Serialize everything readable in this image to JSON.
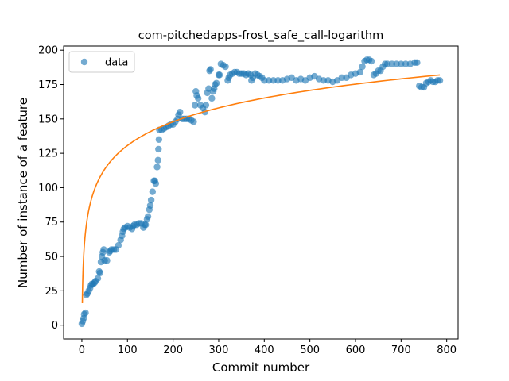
{
  "chart_data": {
    "type": "scatter",
    "title": "com-pitchedapps-frost_safe_call-logarithm",
    "xlabel": "Commit number",
    "ylabel": "Number of instance of a feature",
    "xlim": [
      -40,
      825
    ],
    "ylim": [
      -10,
      203
    ],
    "xticks": [
      0,
      100,
      200,
      300,
      400,
      500,
      600,
      700,
      800
    ],
    "yticks": [
      0,
      25,
      50,
      75,
      100,
      125,
      150,
      175,
      200
    ],
    "grid": false,
    "legend": {
      "position": "top-left",
      "entries": [
        "data"
      ]
    },
    "colors": {
      "data": "#1f77b4",
      "fit": "#ff7f0e"
    },
    "series": [
      {
        "name": "data",
        "kind": "scatter",
        "points": [
          [
            0,
            1
          ],
          [
            2,
            3
          ],
          [
            4,
            5
          ],
          [
            5,
            8
          ],
          [
            8,
            9
          ],
          [
            10,
            22
          ],
          [
            12,
            23
          ],
          [
            15,
            25
          ],
          [
            18,
            27
          ],
          [
            20,
            29
          ],
          [
            22,
            30
          ],
          [
            25,
            30
          ],
          [
            28,
            31
          ],
          [
            30,
            32
          ],
          [
            35,
            34
          ],
          [
            38,
            39
          ],
          [
            40,
            38
          ],
          [
            42,
            46
          ],
          [
            44,
            50
          ],
          [
            46,
            53
          ],
          [
            48,
            55
          ],
          [
            50,
            47
          ],
          [
            55,
            47
          ],
          [
            60,
            53
          ],
          [
            62,
            54
          ],
          [
            65,
            55
          ],
          [
            70,
            55
          ],
          [
            75,
            55
          ],
          [
            80,
            58
          ],
          [
            85,
            62
          ],
          [
            88,
            65
          ],
          [
            90,
            68
          ],
          [
            92,
            70
          ],
          [
            95,
            71
          ],
          [
            100,
            72
          ],
          [
            105,
            71
          ],
          [
            110,
            70
          ],
          [
            112,
            72
          ],
          [
            115,
            73
          ],
          [
            120,
            73
          ],
          [
            125,
            74
          ],
          [
            130,
            74
          ],
          [
            135,
            71
          ],
          [
            138,
            73
          ],
          [
            140,
            73
          ],
          [
            143,
            77
          ],
          [
            145,
            79
          ],
          [
            148,
            84
          ],
          [
            150,
            87
          ],
          [
            152,
            91
          ],
          [
            155,
            97
          ],
          [
            158,
            105
          ],
          [
            160,
            105
          ],
          [
            162,
            103
          ],
          [
            165,
            115
          ],
          [
            167,
            120
          ],
          [
            168,
            128
          ],
          [
            169,
            135
          ],
          [
            170,
            142
          ],
          [
            175,
            142
          ],
          [
            180,
            143
          ],
          [
            185,
            144
          ],
          [
            190,
            145
          ],
          [
            195,
            146
          ],
          [
            200,
            146
          ],
          [
            205,
            148
          ],
          [
            210,
            150
          ],
          [
            212,
            153
          ],
          [
            215,
            155
          ],
          [
            220,
            150
          ],
          [
            225,
            150
          ],
          [
            230,
            150
          ],
          [
            235,
            150
          ],
          [
            240,
            149
          ],
          [
            245,
            148
          ],
          [
            248,
            160
          ],
          [
            250,
            170
          ],
          [
            252,
            167
          ],
          [
            255,
            165
          ],
          [
            260,
            160
          ],
          [
            265,
            158
          ],
          [
            270,
            155
          ],
          [
            272,
            160
          ],
          [
            275,
            169
          ],
          [
            278,
            172
          ],
          [
            280,
            185
          ],
          [
            282,
            186
          ],
          [
            285,
            165
          ],
          [
            288,
            170
          ],
          [
            290,
            172
          ],
          [
            292,
            175
          ],
          [
            295,
            176
          ],
          [
            300,
            182
          ],
          [
            302,
            182
          ],
          [
            305,
            190
          ],
          [
            310,
            189
          ],
          [
            315,
            188
          ],
          [
            320,
            178
          ],
          [
            322,
            180
          ],
          [
            325,
            182
          ],
          [
            330,
            183
          ],
          [
            335,
            184
          ],
          [
            340,
            184
          ],
          [
            345,
            183
          ],
          [
            350,
            183
          ],
          [
            355,
            183
          ],
          [
            360,
            182
          ],
          [
            365,
            183
          ],
          [
            370,
            182
          ],
          [
            372,
            178
          ],
          [
            375,
            180
          ],
          [
            380,
            183
          ],
          [
            385,
            182
          ],
          [
            390,
            181
          ],
          [
            395,
            180
          ],
          [
            400,
            178
          ],
          [
            410,
            178
          ],
          [
            420,
            178
          ],
          [
            430,
            178
          ],
          [
            440,
            178
          ],
          [
            450,
            179
          ],
          [
            460,
            180
          ],
          [
            470,
            178
          ],
          [
            480,
            179
          ],
          [
            490,
            178
          ],
          [
            500,
            180
          ],
          [
            510,
            181
          ],
          [
            520,
            179
          ],
          [
            530,
            178
          ],
          [
            540,
            178
          ],
          [
            550,
            177
          ],
          [
            560,
            178
          ],
          [
            570,
            180
          ],
          [
            580,
            180
          ],
          [
            590,
            182
          ],
          [
            600,
            183
          ],
          [
            610,
            184
          ],
          [
            615,
            188
          ],
          [
            620,
            192
          ],
          [
            625,
            193
          ],
          [
            630,
            193
          ],
          [
            635,
            192
          ],
          [
            640,
            182
          ],
          [
            645,
            183
          ],
          [
            650,
            185
          ],
          [
            655,
            185
          ],
          [
            660,
            188
          ],
          [
            665,
            190
          ],
          [
            670,
            190
          ],
          [
            680,
            190
          ],
          [
            690,
            190
          ],
          [
            700,
            190
          ],
          [
            710,
            190
          ],
          [
            720,
            190
          ],
          [
            730,
            191
          ],
          [
            735,
            191
          ],
          [
            740,
            174
          ],
          [
            745,
            173
          ],
          [
            750,
            173
          ],
          [
            755,
            176
          ],
          [
            760,
            177
          ],
          [
            765,
            178
          ],
          [
            770,
            177
          ],
          [
            775,
            177
          ],
          [
            780,
            178
          ],
          [
            785,
            178
          ]
        ]
      },
      {
        "name": "",
        "kind": "line",
        "function": "y = a + b*ln(x)",
        "a": 16,
        "b": 24.9,
        "x_range": [
          1,
          785
        ]
      }
    ]
  }
}
